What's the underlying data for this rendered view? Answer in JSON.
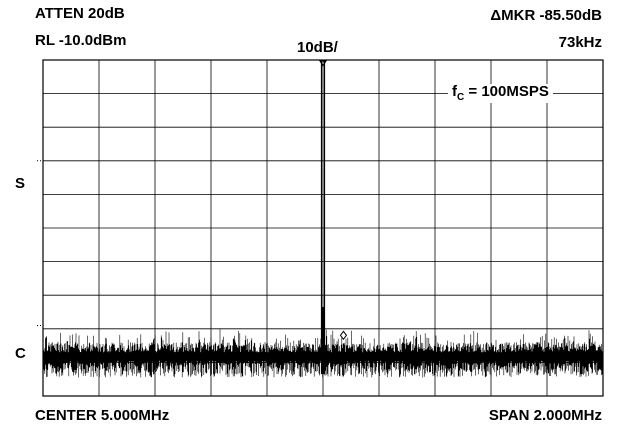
{
  "header": {
    "atten": "ATTEN 20dB",
    "rl": "RL -10.0dBm",
    "scale": "10dB/",
    "marker_label": "ΔMKR -85.50dB",
    "marker_freq": "73kHz"
  },
  "annotation": {
    "f_main": "f",
    "f_sub": "C",
    "f_rest": " = 100MSPS"
  },
  "side_markers": {
    "s": "S",
    "c": "C"
  },
  "footer": {
    "center": "CENTER 5.000MHz",
    "span": "SPAN 2.000MHz"
  },
  "chart_data": {
    "type": "line",
    "title": "",
    "xlabel": "",
    "ylabel": "",
    "center_freq_mhz": 5.0,
    "span_mhz": 2.0,
    "xlim": [
      4.0,
      6.0
    ],
    "ref_level_dbm": -10.0,
    "db_per_div": 10,
    "y_divisions": 10,
    "x_divisions": 10,
    "ylim": [
      -110,
      -10
    ],
    "grid": true,
    "series": [
      {
        "points": [
          {
            "x": 5.0,
            "y": -10.0
          }
        ],
        "noise_floor_dbm": -95.5
      }
    ],
    "marker": {
      "delta_db": -85.5,
      "delta_freq_khz": 73,
      "x": 5.073,
      "y": -95.5
    },
    "colors": {
      "trace": "#000000",
      "grid": "#000000",
      "background": "#ffffff"
    }
  }
}
